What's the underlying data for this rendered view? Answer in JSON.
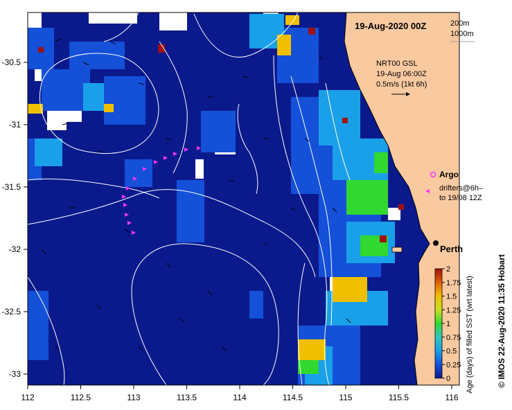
{
  "map": {
    "title": "19-Aug-2020 00Z",
    "depth_legend": [
      "200m",
      "1000m"
    ],
    "current_legend": {
      "lines": [
        "NRT00 GSL",
        "19-Aug 06:00Z",
        "0.5m/s (1kt 6h)"
      ]
    },
    "argo_label": "Argo",
    "drifters_label_1": "drifters@6h–",
    "drifters_label_2": "to 19/08 12Z",
    "city": "Perth",
    "credit": "© IMOS 22-Aug-2020 11:35 Hobart",
    "colorbar": {
      "title": "Age (days) of filled SST (wrt latest)",
      "ticks": [
        "0",
        "0.25",
        "0.5",
        "0.75",
        "1",
        "1.25",
        "1.5",
        "1.75",
        "2"
      ],
      "min": 0,
      "max": 2
    },
    "x_ticks": [
      "112",
      "112.5",
      "113",
      "113.5",
      "114",
      "114.5",
      "115",
      "115.5",
      "116"
    ],
    "y_ticks": [
      "-30.5",
      "-31",
      "-31.5",
      "-32",
      "-32.5",
      "-33"
    ],
    "colors": {
      "deep_water": "#0a1a8c",
      "land": "#f9c9a0",
      "contour": "#ffffff",
      "drifter": "#ff33ff"
    }
  }
}
